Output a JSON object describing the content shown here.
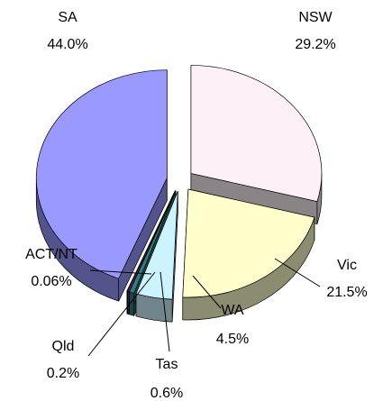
{
  "chart_data": {
    "type": "pie",
    "categories": [
      "NSW",
      "Vic",
      "WA",
      "Tas",
      "Qld",
      "ACT/NT",
      "SA"
    ],
    "values": [
      29.2,
      21.5,
      4.5,
      0.6,
      0.2,
      0.06,
      44.0
    ],
    "value_labels": [
      "29.2%",
      "21.5%",
      "4.5%",
      "0.6%",
      "0.2%",
      "0.06%",
      "44.0%"
    ],
    "colors": [
      "#fdf0f6",
      "#ffffcc",
      "#ccf4ff",
      "#2f7f7f",
      "#7a2a8a",
      "#2a2a4a",
      "#9999ff"
    ],
    "three_d": true,
    "exploded": true
  }
}
